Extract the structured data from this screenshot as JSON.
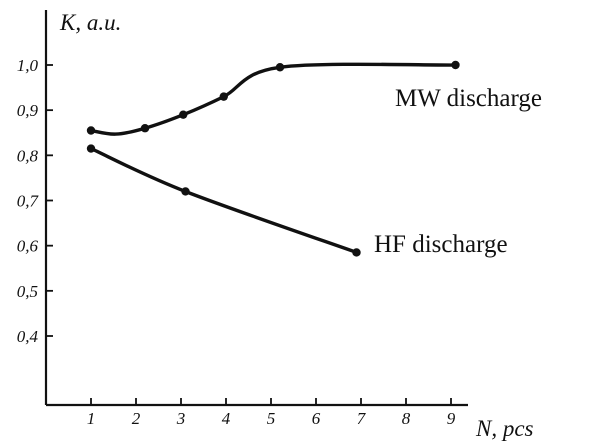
{
  "chart_data": {
    "type": "line",
    "title": "",
    "xlabel": "N, pcs",
    "ylabel": "K, a.u.",
    "x_ticks": [
      "1",
      "2",
      "3",
      "4",
      "5",
      "6",
      "7",
      "8",
      "9"
    ],
    "y_ticks": [
      "0,4",
      "0,5",
      "0,6",
      "0,7",
      "0,8",
      "0,9",
      "1,0"
    ],
    "xlim": [
      0,
      10
    ],
    "ylim": [
      0.3,
      1.1
    ],
    "grid": false,
    "series": [
      {
        "name": "MW discharge",
        "x": [
          1,
          2.2,
          3.05,
          3.95,
          5.2,
          9.1
        ],
        "y": [
          0.855,
          0.86,
          0.89,
          0.93,
          0.995,
          1.0
        ]
      },
      {
        "name": "HF discharge",
        "x": [
          1,
          3.1,
          6.9
        ],
        "y": [
          0.815,
          0.72,
          0.585
        ]
      }
    ]
  }
}
